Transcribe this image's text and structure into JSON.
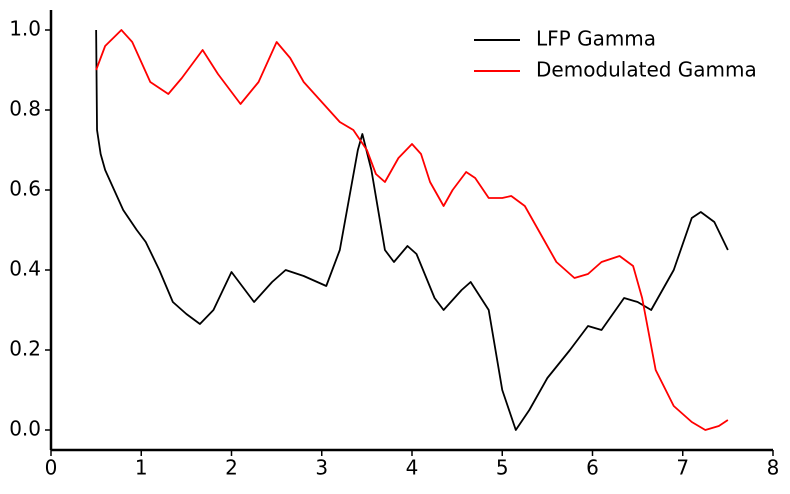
{
  "chart_data": {
    "type": "line",
    "xlim": [
      0,
      8
    ],
    "xticks": [
      0,
      1,
      2,
      3,
      4,
      5,
      6,
      7,
      8
    ],
    "ylim": [
      -0.05,
      1.05
    ],
    "yticks": [
      {
        "value": 0,
        "label": "0.0"
      },
      0.2,
      0.4,
      0.6,
      0.8,
      {
        "value": 1,
        "label": "1.0"
      }
    ],
    "legend": "upper right",
    "series": [
      {
        "name": "LFP Gamma",
        "color": "#000000",
        "x": [
          0.5,
          0.51,
          0.55,
          0.6,
          0.7,
          0.8,
          0.95,
          1.05,
          1.2,
          1.35,
          1.5,
          1.65,
          1.8,
          2.0,
          2.15,
          2.25,
          2.45,
          2.6,
          2.8,
          2.95,
          3.05,
          3.2,
          3.4,
          3.45,
          3.55,
          3.7,
          3.8,
          3.95,
          4.05,
          4.25,
          4.35,
          4.55,
          4.65,
          4.85,
          5.0,
          5.15,
          5.3,
          5.5,
          5.75,
          5.95,
          6.1,
          6.35,
          6.5,
          6.65,
          6.9,
          7.1,
          7.2,
          7.35,
          7.5
        ],
        "values": [
          1.0,
          0.75,
          0.69,
          0.65,
          0.6,
          0.55,
          0.5,
          0.47,
          0.4,
          0.32,
          0.29,
          0.265,
          0.3,
          0.395,
          0.35,
          0.32,
          0.37,
          0.4,
          0.385,
          0.37,
          0.36,
          0.45,
          0.7,
          0.74,
          0.65,
          0.45,
          0.42,
          0.46,
          0.44,
          0.33,
          0.3,
          0.35,
          0.37,
          0.3,
          0.1,
          0.0,
          0.05,
          0.13,
          0.2,
          0.26,
          0.25,
          0.33,
          0.32,
          0.3,
          0.4,
          0.53,
          0.545,
          0.52,
          0.45
        ]
      },
      {
        "name": "Demodulated Gamma",
        "color": "#ff0000",
        "x": [
          0.5,
          0.6,
          0.78,
          0.9,
          1.1,
          1.3,
          1.45,
          1.68,
          1.85,
          2.1,
          2.3,
          2.5,
          2.65,
          2.8,
          3.0,
          3.2,
          3.35,
          3.5,
          3.6,
          3.7,
          3.85,
          4.0,
          4.1,
          4.2,
          4.35,
          4.45,
          4.6,
          4.7,
          4.85,
          5.0,
          5.1,
          5.25,
          5.45,
          5.6,
          5.8,
          5.95,
          6.1,
          6.3,
          6.45,
          6.55,
          6.7,
          6.9,
          7.1,
          7.25,
          7.4,
          7.5
        ],
        "values": [
          0.9,
          0.96,
          1.0,
          0.97,
          0.87,
          0.84,
          0.88,
          0.95,
          0.89,
          0.815,
          0.87,
          0.97,
          0.93,
          0.87,
          0.82,
          0.77,
          0.75,
          0.7,
          0.64,
          0.62,
          0.68,
          0.715,
          0.69,
          0.62,
          0.56,
          0.6,
          0.645,
          0.63,
          0.58,
          0.58,
          0.585,
          0.56,
          0.48,
          0.42,
          0.38,
          0.39,
          0.42,
          0.435,
          0.41,
          0.33,
          0.15,
          0.06,
          0.02,
          0.0,
          0.01,
          0.025
        ]
      }
    ]
  }
}
